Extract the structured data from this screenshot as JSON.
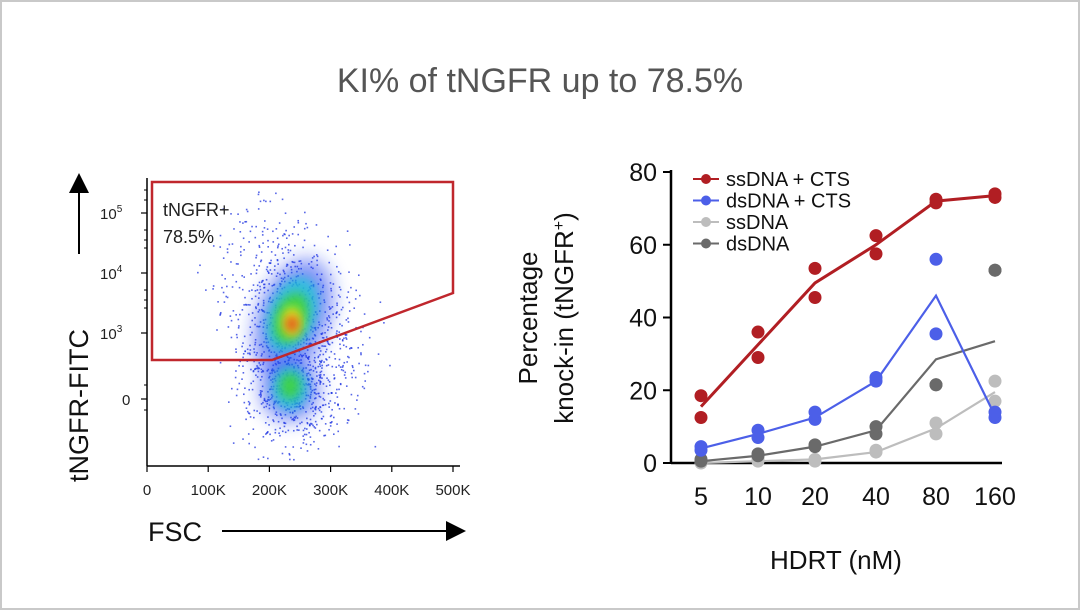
{
  "slide": {
    "title": "KI% of tNGFR up to 78.5%"
  },
  "chart_data": [
    {
      "type": "scatter",
      "subtype": "flow-cytometry-density",
      "title": "",
      "xlabel": "FSC",
      "ylabel": "tNGFR-FITC",
      "x_ticks": [
        "0",
        "100K",
        "200K",
        "300K",
        "400K",
        "500K"
      ],
      "y_ticks": [
        {
          "base": "10",
          "exp": "5"
        },
        {
          "base": "10",
          "exp": "4"
        },
        {
          "base": "10",
          "exp": "3"
        },
        {
          "base": "0",
          "exp": ""
        }
      ],
      "xlim": [
        0,
        500000
      ],
      "gate": {
        "name": "tNGFR+",
        "percent": "78.5%",
        "color": "#c0272d"
      },
      "populations": [
        {
          "name": "positive",
          "center_fsc": 230000,
          "color": "#d42a1f"
        },
        {
          "name": "negative",
          "center_fsc": 235000,
          "color": "#1a2bd6"
        }
      ]
    },
    {
      "type": "line",
      "title": "",
      "xlabel": "HDRT (nM)",
      "ylabel_line1": "Percentage",
      "ylabel_line2": "knock-in (tNGFR",
      "ylabel_sup": "+",
      "ylabel_close": ")",
      "categories": [
        "5",
        "10",
        "20",
        "40",
        "80",
        "160"
      ],
      "ylim": [
        0,
        80
      ],
      "y_ticks": [
        "0",
        "20",
        "40",
        "60",
        "80"
      ],
      "legend_position": "top-left",
      "series": [
        {
          "name": "ssDNA + CTS",
          "color": "#b11e23",
          "line": [
            15.5,
            32.5,
            49.5,
            60,
            72,
            73.5
          ],
          "points": [
            [
              18.5,
              12.5
            ],
            [
              36,
              29
            ],
            [
              53.5,
              45.5
            ],
            [
              62.5,
              57.5
            ],
            [
              71.5,
              72.5
            ],
            [
              73,
              74
            ]
          ]
        },
        {
          "name": "dsDNA + CTS",
          "color": "#4c5fe8",
          "line": [
            4,
            8,
            12.5,
            22.5,
            46,
            13
          ],
          "points": [
            [
              3.5,
              4.5
            ],
            [
              7,
              9
            ],
            [
              12,
              14
            ],
            [
              22.5,
              23.5
            ],
            [
              56,
              35.5
            ],
            [
              12.5,
              14
            ]
          ]
        },
        {
          "name": "ssDNA",
          "color": "#bdbdbd",
          "line": [
            0,
            0.5,
            1,
            3,
            9.5,
            19.5
          ],
          "points": [
            [
              0,
              0.5
            ],
            [
              1,
              0.5
            ],
            [
              1,
              0.5
            ],
            [
              3,
              3.5
            ],
            [
              8,
              11
            ],
            [
              22.5,
              17
            ]
          ]
        },
        {
          "name": "dsDNA",
          "color": "#6a6a6a",
          "line": [
            0.5,
            2,
            4.5,
            9,
            28.5,
            33.5
          ],
          "points": [
            [
              0.5,
              1
            ],
            [
              2,
              2.5
            ],
            [
              4.5,
              5
            ],
            [
              8,
              10
            ],
            [
              21.5,
              21.5
            ],
            [
              53,
              53
            ]
          ]
        }
      ]
    }
  ]
}
